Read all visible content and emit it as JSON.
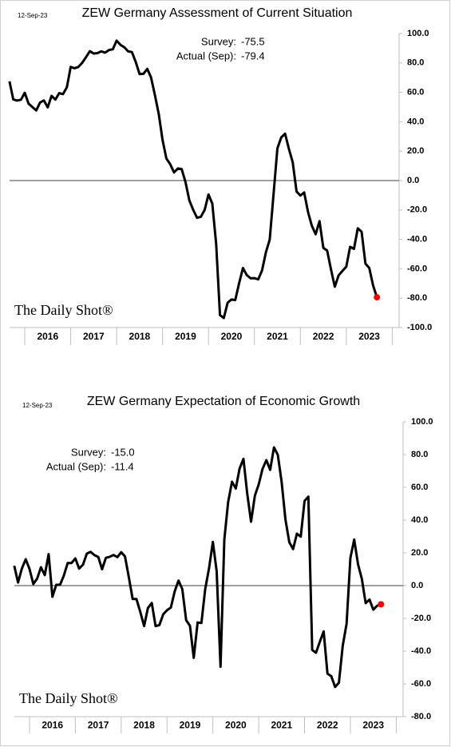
{
  "chart_data": [
    {
      "type": "line",
      "title": "ZEW Germany Assessment of Current Situation",
      "date": "12-Sep-23",
      "source": "The Daily Shot®",
      "annotations": [
        {
          "label": "Survey:",
          "value": "-75.5"
        },
        {
          "label": "Actual (Sep):",
          "value": "-79.4"
        }
      ],
      "x": [
        2015.667,
        2015.75,
        2015.833,
        2015.917,
        2016,
        2016.083,
        2016.167,
        2016.25,
        2016.333,
        2016.417,
        2016.5,
        2016.583,
        2016.667,
        2016.75,
        2016.833,
        2016.917,
        2017,
        2017.083,
        2017.167,
        2017.25,
        2017.333,
        2017.417,
        2017.5,
        2017.583,
        2017.667,
        2017.75,
        2017.833,
        2017.917,
        2018,
        2018.083,
        2018.167,
        2018.25,
        2018.333,
        2018.417,
        2018.5,
        2018.583,
        2018.667,
        2018.75,
        2018.833,
        2018.917,
        2019,
        2019.083,
        2019.167,
        2019.25,
        2019.333,
        2019.417,
        2019.5,
        2019.583,
        2019.667,
        2019.75,
        2019.833,
        2019.917,
        2020,
        2020.083,
        2020.167,
        2020.25,
        2020.333,
        2020.417,
        2020.5,
        2020.583,
        2020.667,
        2020.75,
        2020.833,
        2020.917,
        2021,
        2021.083,
        2021.167,
        2021.25,
        2021.333,
        2021.417,
        2021.5,
        2021.583,
        2021.667,
        2021.75,
        2021.833,
        2021.917,
        2022,
        2022.083,
        2022.167,
        2022.25,
        2022.333,
        2022.417,
        2022.5,
        2022.583,
        2022.667,
        2022.75,
        2022.833,
        2022.917,
        2023,
        2023.083,
        2023.167,
        2023.25,
        2023.333,
        2023.417,
        2023.5,
        2023.583,
        2023.667
      ],
      "series": [
        {
          "color": "#000000",
          "marker_color": "#ff0000",
          "values": [
            67.5,
            55.2,
            54.4,
            55.0,
            59.7,
            52.3,
            50.0,
            47.7,
            53.1,
            54.5,
            49.8,
            57.6,
            55.1,
            59.5,
            58.8,
            63.5,
            77.3,
            76.4,
            77.3,
            80.1,
            83.9,
            88.0,
            86.4,
            86.7,
            87.9,
            87.0,
            88.8,
            89.3,
            95.2,
            92.3,
            90.7,
            87.9,
            87.4,
            80.6,
            72.4,
            72.6,
            76.0,
            70.1,
            58.2,
            45.3,
            27.6,
            15.0,
            11.1,
            5.5,
            8.2,
            7.8,
            -1.1,
            -13.5,
            -19.9,
            -25.3,
            -24.7,
            -19.9,
            -9.5,
            -15.7,
            -43.1,
            -91.5,
            -93.5,
            -83.1,
            -80.9,
            -81.3,
            -69.8,
            -59.5,
            -64.3,
            -66.5,
            -66.4,
            -67.2,
            -61.0,
            -48.8,
            -40.1,
            -9.1,
            21.9,
            29.3,
            31.9,
            21.6,
            12.5,
            -7.4,
            -10.2,
            -8.1,
            -21.4,
            -30.8,
            -36.5,
            -27.6,
            -45.8,
            -47.6,
            -60.5,
            -72.2,
            -64.5,
            -61.4,
            -58.6,
            -45.1,
            -46.5,
            -32.5,
            -34.8,
            -56.5,
            -59.5,
            -71.3,
            -79.4
          ]
        }
      ],
      "xlim": [
        2015.6,
        2024.15
      ],
      "year_labels": [
        2016,
        2017,
        2018,
        2019,
        2020,
        2021,
        2022,
        2023
      ],
      "ylim": [
        -100,
        100
      ],
      "yticks": [
        {
          "value": 100,
          "label": "100.0"
        },
        {
          "value": 80,
          "label": "80.0"
        },
        {
          "value": 60,
          "label": "60.0"
        },
        {
          "value": 40,
          "label": "40.0"
        },
        {
          "value": 20,
          "label": "20.0"
        },
        {
          "value": 0,
          "label": "0.0"
        },
        {
          "value": -20,
          "label": "-20.0"
        },
        {
          "value": -40,
          "label": "-40.0"
        },
        {
          "value": -60,
          "label": "-60.0"
        },
        {
          "value": -80,
          "label": "-80.0"
        },
        {
          "value": -100,
          "label": "-100.0"
        }
      ]
    },
    {
      "type": "line",
      "title": "ZEW Germany Expectation of Economic Growth",
      "date": "12-Sep-23",
      "source": "The Daily Shot®",
      "annotations": [
        {
          "label": "Survey:",
          "value": "-15.0"
        },
        {
          "label": "Actual (Sep):",
          "value": "-11.4"
        }
      ],
      "x": [
        2015.667,
        2015.75,
        2015.833,
        2015.917,
        2016,
        2016.083,
        2016.167,
        2016.25,
        2016.333,
        2016.417,
        2016.5,
        2016.583,
        2016.667,
        2016.75,
        2016.833,
        2016.917,
        2017,
        2017.083,
        2017.167,
        2017.25,
        2017.333,
        2017.417,
        2017.5,
        2017.583,
        2017.667,
        2017.75,
        2017.833,
        2017.917,
        2018,
        2018.083,
        2018.167,
        2018.25,
        2018.333,
        2018.417,
        2018.5,
        2018.583,
        2018.667,
        2018.75,
        2018.833,
        2018.917,
        2019,
        2019.083,
        2019.167,
        2019.25,
        2019.333,
        2019.417,
        2019.5,
        2019.583,
        2019.667,
        2019.75,
        2019.833,
        2019.917,
        2020,
        2020.083,
        2020.167,
        2020.25,
        2020.333,
        2020.417,
        2020.5,
        2020.583,
        2020.667,
        2020.75,
        2020.833,
        2020.917,
        2021,
        2021.083,
        2021.167,
        2021.25,
        2021.333,
        2021.417,
        2021.5,
        2021.583,
        2021.667,
        2021.75,
        2021.833,
        2021.917,
        2022,
        2022.083,
        2022.167,
        2022.25,
        2022.333,
        2022.417,
        2022.5,
        2022.583,
        2022.667,
        2022.75,
        2022.833,
        2022.917,
        2023,
        2023.083,
        2023.167,
        2023.25,
        2023.333,
        2023.417,
        2023.5,
        2023.583,
        2023.667
      ],
      "series": [
        {
          "color": "#000000",
          "marker_color": "#ff0000",
          "values": [
            12.1,
            1.9,
            10.4,
            16.1,
            10.2,
            1.0,
            4.3,
            11.2,
            6.4,
            19.2,
            -6.8,
            0.5,
            0.5,
            6.2,
            13.8,
            13.8,
            16.6,
            10.4,
            12.8,
            19.5,
            20.6,
            18.6,
            17.5,
            10.0,
            17.0,
            17.6,
            18.7,
            17.4,
            20.4,
            17.8,
            5.1,
            -8.2,
            -8.2,
            -16.1,
            -24.7,
            -13.7,
            -10.6,
            -24.7,
            -24.1,
            -17.5,
            -15.0,
            -13.4,
            -3.6,
            3.1,
            -2.1,
            -21.1,
            -24.5,
            -44.1,
            -22.5,
            -22.8,
            -2.1,
            10.7,
            26.7,
            8.7,
            -49.5,
            28.2,
            51.0,
            63.4,
            59.3,
            71.5,
            77.4,
            56.1,
            39.0,
            55.0,
            61.8,
            71.2,
            76.6,
            70.7,
            84.4,
            79.8,
            63.3,
            40.4,
            26.5,
            22.3,
            31.7,
            29.9,
            51.7,
            54.3,
            -39.3,
            -41.0,
            -34.3,
            -28.0,
            -53.8,
            -55.3,
            -61.9,
            -59.2,
            -36.7,
            -23.3,
            16.9,
            28.1,
            13.0,
            4.1,
            -10.7,
            -8.5,
            -14.7,
            -12.3,
            -11.4
          ]
        }
      ],
      "xlim": [
        2015.6,
        2024.15
      ],
      "year_labels": [
        2016,
        2017,
        2018,
        2019,
        2020,
        2021,
        2022,
        2023
      ],
      "ylim": [
        -80,
        100
      ],
      "yticks": [
        {
          "value": 100,
          "label": "100.0"
        },
        {
          "value": 80,
          "label": "80.0"
        },
        {
          "value": 60,
          "label": "60.0"
        },
        {
          "value": 40,
          "label": "40.0"
        },
        {
          "value": 20,
          "label": "20.0"
        },
        {
          "value": 0,
          "label": "0.0"
        },
        {
          "value": -20,
          "label": "-20.0"
        },
        {
          "value": -40,
          "label": "-40.0"
        },
        {
          "value": -60,
          "label": "-60.0"
        },
        {
          "value": -80,
          "label": "-80.0"
        }
      ]
    }
  ]
}
